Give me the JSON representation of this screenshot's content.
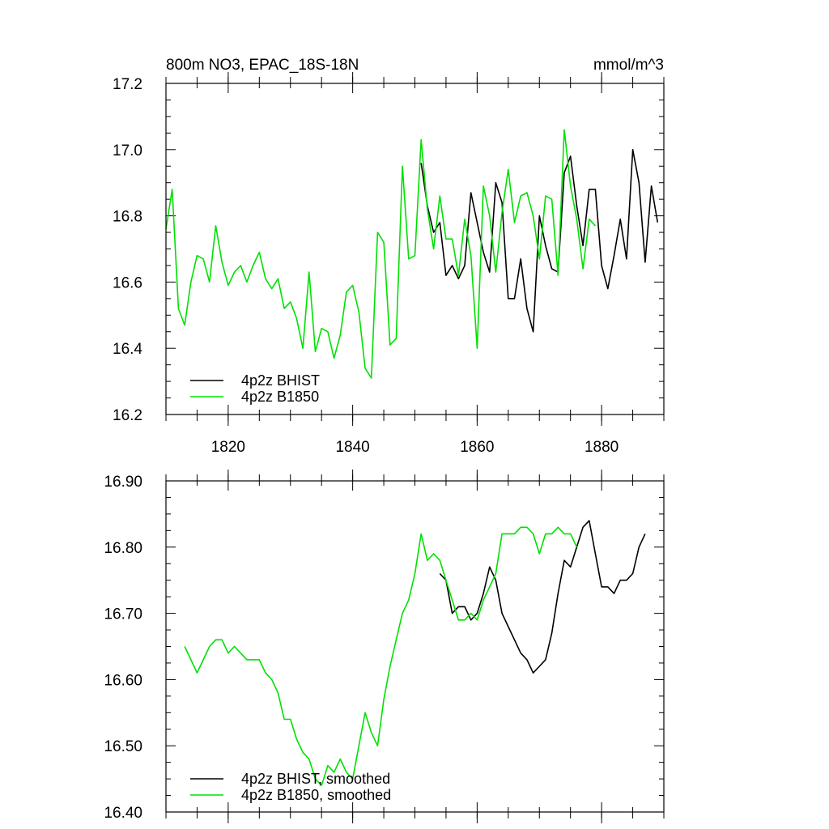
{
  "colors": {
    "bhist": "#000000",
    "b1850": "#00e000"
  },
  "chart_data": [
    {
      "type": "line",
      "title": "800m NO3, EPAC_18S-18N",
      "units": "mmol/m^3",
      "xlim": [
        1810,
        1890
      ],
      "ylim": [
        16.2,
        17.2
      ],
      "yticks": [
        {
          "value": 16.2,
          "label": "16.2"
        },
        {
          "value": 16.4,
          "label": "16.4"
        },
        {
          "value": 16.6,
          "label": "16.6"
        },
        {
          "value": 16.8,
          "label": "16.8"
        },
        {
          "value": 17.0,
          "label": "17.0"
        },
        {
          "value": 17.2,
          "label": "17.2"
        }
      ],
      "xticks": [
        {
          "value": 1820,
          "label": "1820"
        },
        {
          "value": 1840,
          "label": "1840"
        },
        {
          "value": 1860,
          "label": "1860"
        },
        {
          "value": 1880,
          "label": "1880"
        }
      ],
      "legend_placement": "bottom-left",
      "series": [
        {
          "name": "4p2z BHIST",
          "color_key": "bhist",
          "x0": 1851,
          "values": [
            16.96,
            16.83,
            16.75,
            16.78,
            16.62,
            16.65,
            16.61,
            16.65,
            16.87,
            16.78,
            16.69,
            16.63,
            16.9,
            16.84,
            16.55,
            16.55,
            16.67,
            16.52,
            16.45,
            16.8,
            16.71,
            16.64,
            16.63,
            16.93,
            16.98,
            16.83,
            16.71,
            16.88,
            16.88,
            16.65,
            16.58,
            16.68,
            16.79,
            16.67,
            17.0,
            16.9,
            16.66,
            16.89,
            16.78
          ]
        },
        {
          "name": "4p2z B1850",
          "color_key": "b1850",
          "x0": 1810,
          "values": [
            16.76,
            16.88,
            16.52,
            16.47,
            16.6,
            16.68,
            16.67,
            16.6,
            16.77,
            16.66,
            16.59,
            16.63,
            16.65,
            16.6,
            16.65,
            16.69,
            16.61,
            16.58,
            16.61,
            16.52,
            16.54,
            16.49,
            16.4,
            16.63,
            16.39,
            16.46,
            16.45,
            16.37,
            16.44,
            16.57,
            16.59,
            16.51,
            16.34,
            16.31,
            16.75,
            16.72,
            16.41,
            16.43,
            16.95,
            16.67,
            16.68,
            17.03,
            16.82,
            16.7,
            16.86,
            16.73,
            16.73,
            16.62,
            16.79,
            16.68,
            16.4,
            16.89,
            16.8,
            16.63,
            16.81,
            16.94,
            16.78,
            16.86,
            16.87,
            16.8,
            16.67,
            16.86,
            16.85,
            16.62,
            17.06,
            16.89,
            16.79,
            16.64,
            16.79,
            16.77
          ]
        }
      ]
    },
    {
      "type": "line",
      "xlim": [
        1810,
        1890
      ],
      "ylim": [
        16.4,
        16.9
      ],
      "yticks": [
        {
          "value": 16.4,
          "label": "16.40"
        },
        {
          "value": 16.5,
          "label": "16.50"
        },
        {
          "value": 16.6,
          "label": "16.60"
        },
        {
          "value": 16.7,
          "label": "16.70"
        },
        {
          "value": 16.8,
          "label": "16.80"
        },
        {
          "value": 16.9,
          "label": "16.90"
        }
      ],
      "xticks": [
        {
          "value": 1820,
          "label": ""
        },
        {
          "value": 1840,
          "label": ""
        },
        {
          "value": 1860,
          "label": ""
        },
        {
          "value": 1880,
          "label": ""
        }
      ],
      "legend_placement": "bottom-left",
      "series": [
        {
          "name": "4p2z BHIST, smoothed",
          "color_key": "bhist",
          "x0": 1854,
          "values": [
            16.76,
            16.75,
            16.7,
            16.71,
            16.71,
            16.69,
            16.7,
            16.73,
            16.77,
            16.75,
            16.7,
            16.68,
            16.66,
            16.64,
            16.63,
            16.61,
            16.62,
            16.63,
            16.67,
            16.73,
            16.78,
            16.77,
            16.8,
            16.83,
            16.84,
            16.79,
            16.74,
            16.74,
            16.73,
            16.75,
            16.75,
            16.76,
            16.8,
            16.82
          ]
        },
        {
          "name": "4p2z B1850, smoothed",
          "color_key": "b1850",
          "x0": 1813,
          "values": [
            16.65,
            16.63,
            16.61,
            16.63,
            16.65,
            16.66,
            16.66,
            16.64,
            16.65,
            16.64,
            16.63,
            16.63,
            16.63,
            16.61,
            16.6,
            16.58,
            16.54,
            16.54,
            16.51,
            16.49,
            16.48,
            16.45,
            16.44,
            16.47,
            16.46,
            16.48,
            16.46,
            16.45,
            16.5,
            16.55,
            16.52,
            16.5,
            16.57,
            16.62,
            16.66,
            16.7,
            16.72,
            16.76,
            16.82,
            16.78,
            16.79,
            16.78,
            16.75,
            16.72,
            16.69,
            16.69,
            16.7,
            16.69,
            16.72,
            16.74,
            16.76,
            16.82,
            16.82,
            16.82,
            16.83,
            16.83,
            16.82,
            16.79,
            16.82,
            16.82,
            16.83,
            16.82,
            16.82,
            16.8
          ]
        }
      ]
    }
  ]
}
